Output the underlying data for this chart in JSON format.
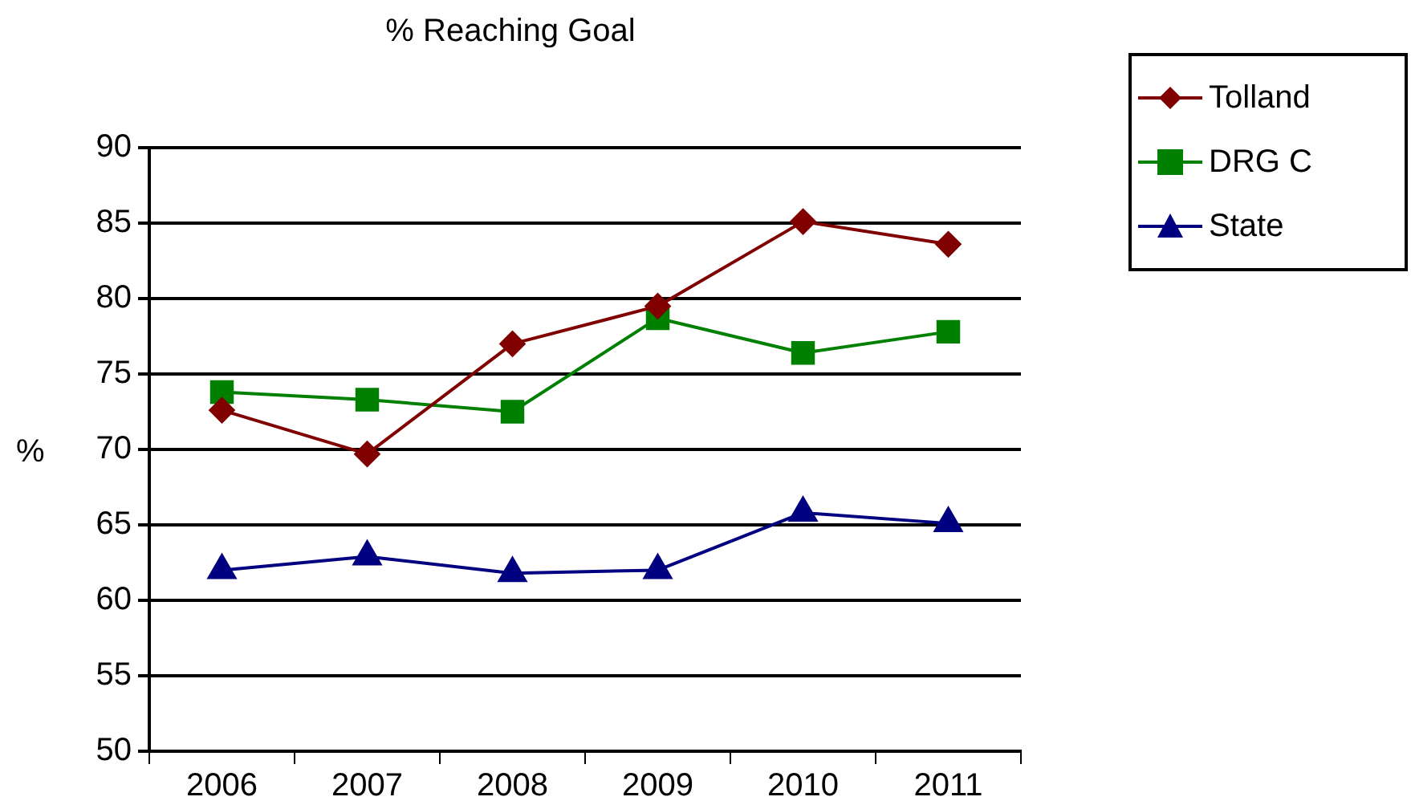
{
  "chart_data": {
    "type": "line",
    "title": "% Reaching Goal",
    "ylabel": "%",
    "categories": [
      "2006",
      "2007",
      "2008",
      "2009",
      "2010",
      "2011"
    ],
    "series": [
      {
        "name": "Tolland",
        "color": "#800000",
        "marker": "diamond",
        "values": [
          72.6,
          69.7,
          77.0,
          79.5,
          85.1,
          83.6
        ]
      },
      {
        "name": "DRG C",
        "color": "#008000",
        "marker": "square",
        "values": [
          73.8,
          73.3,
          72.5,
          78.7,
          76.4,
          77.8
        ]
      },
      {
        "name": "State",
        "color": "#000080",
        "marker": "triangle",
        "values": [
          62.0,
          62.9,
          61.8,
          62.0,
          65.8,
          65.1
        ]
      }
    ],
    "ylim": [
      50,
      90
    ],
    "yticks": [
      50,
      55,
      60,
      65,
      70,
      75,
      80,
      85,
      90
    ],
    "grid": "y",
    "legend": "top right"
  }
}
